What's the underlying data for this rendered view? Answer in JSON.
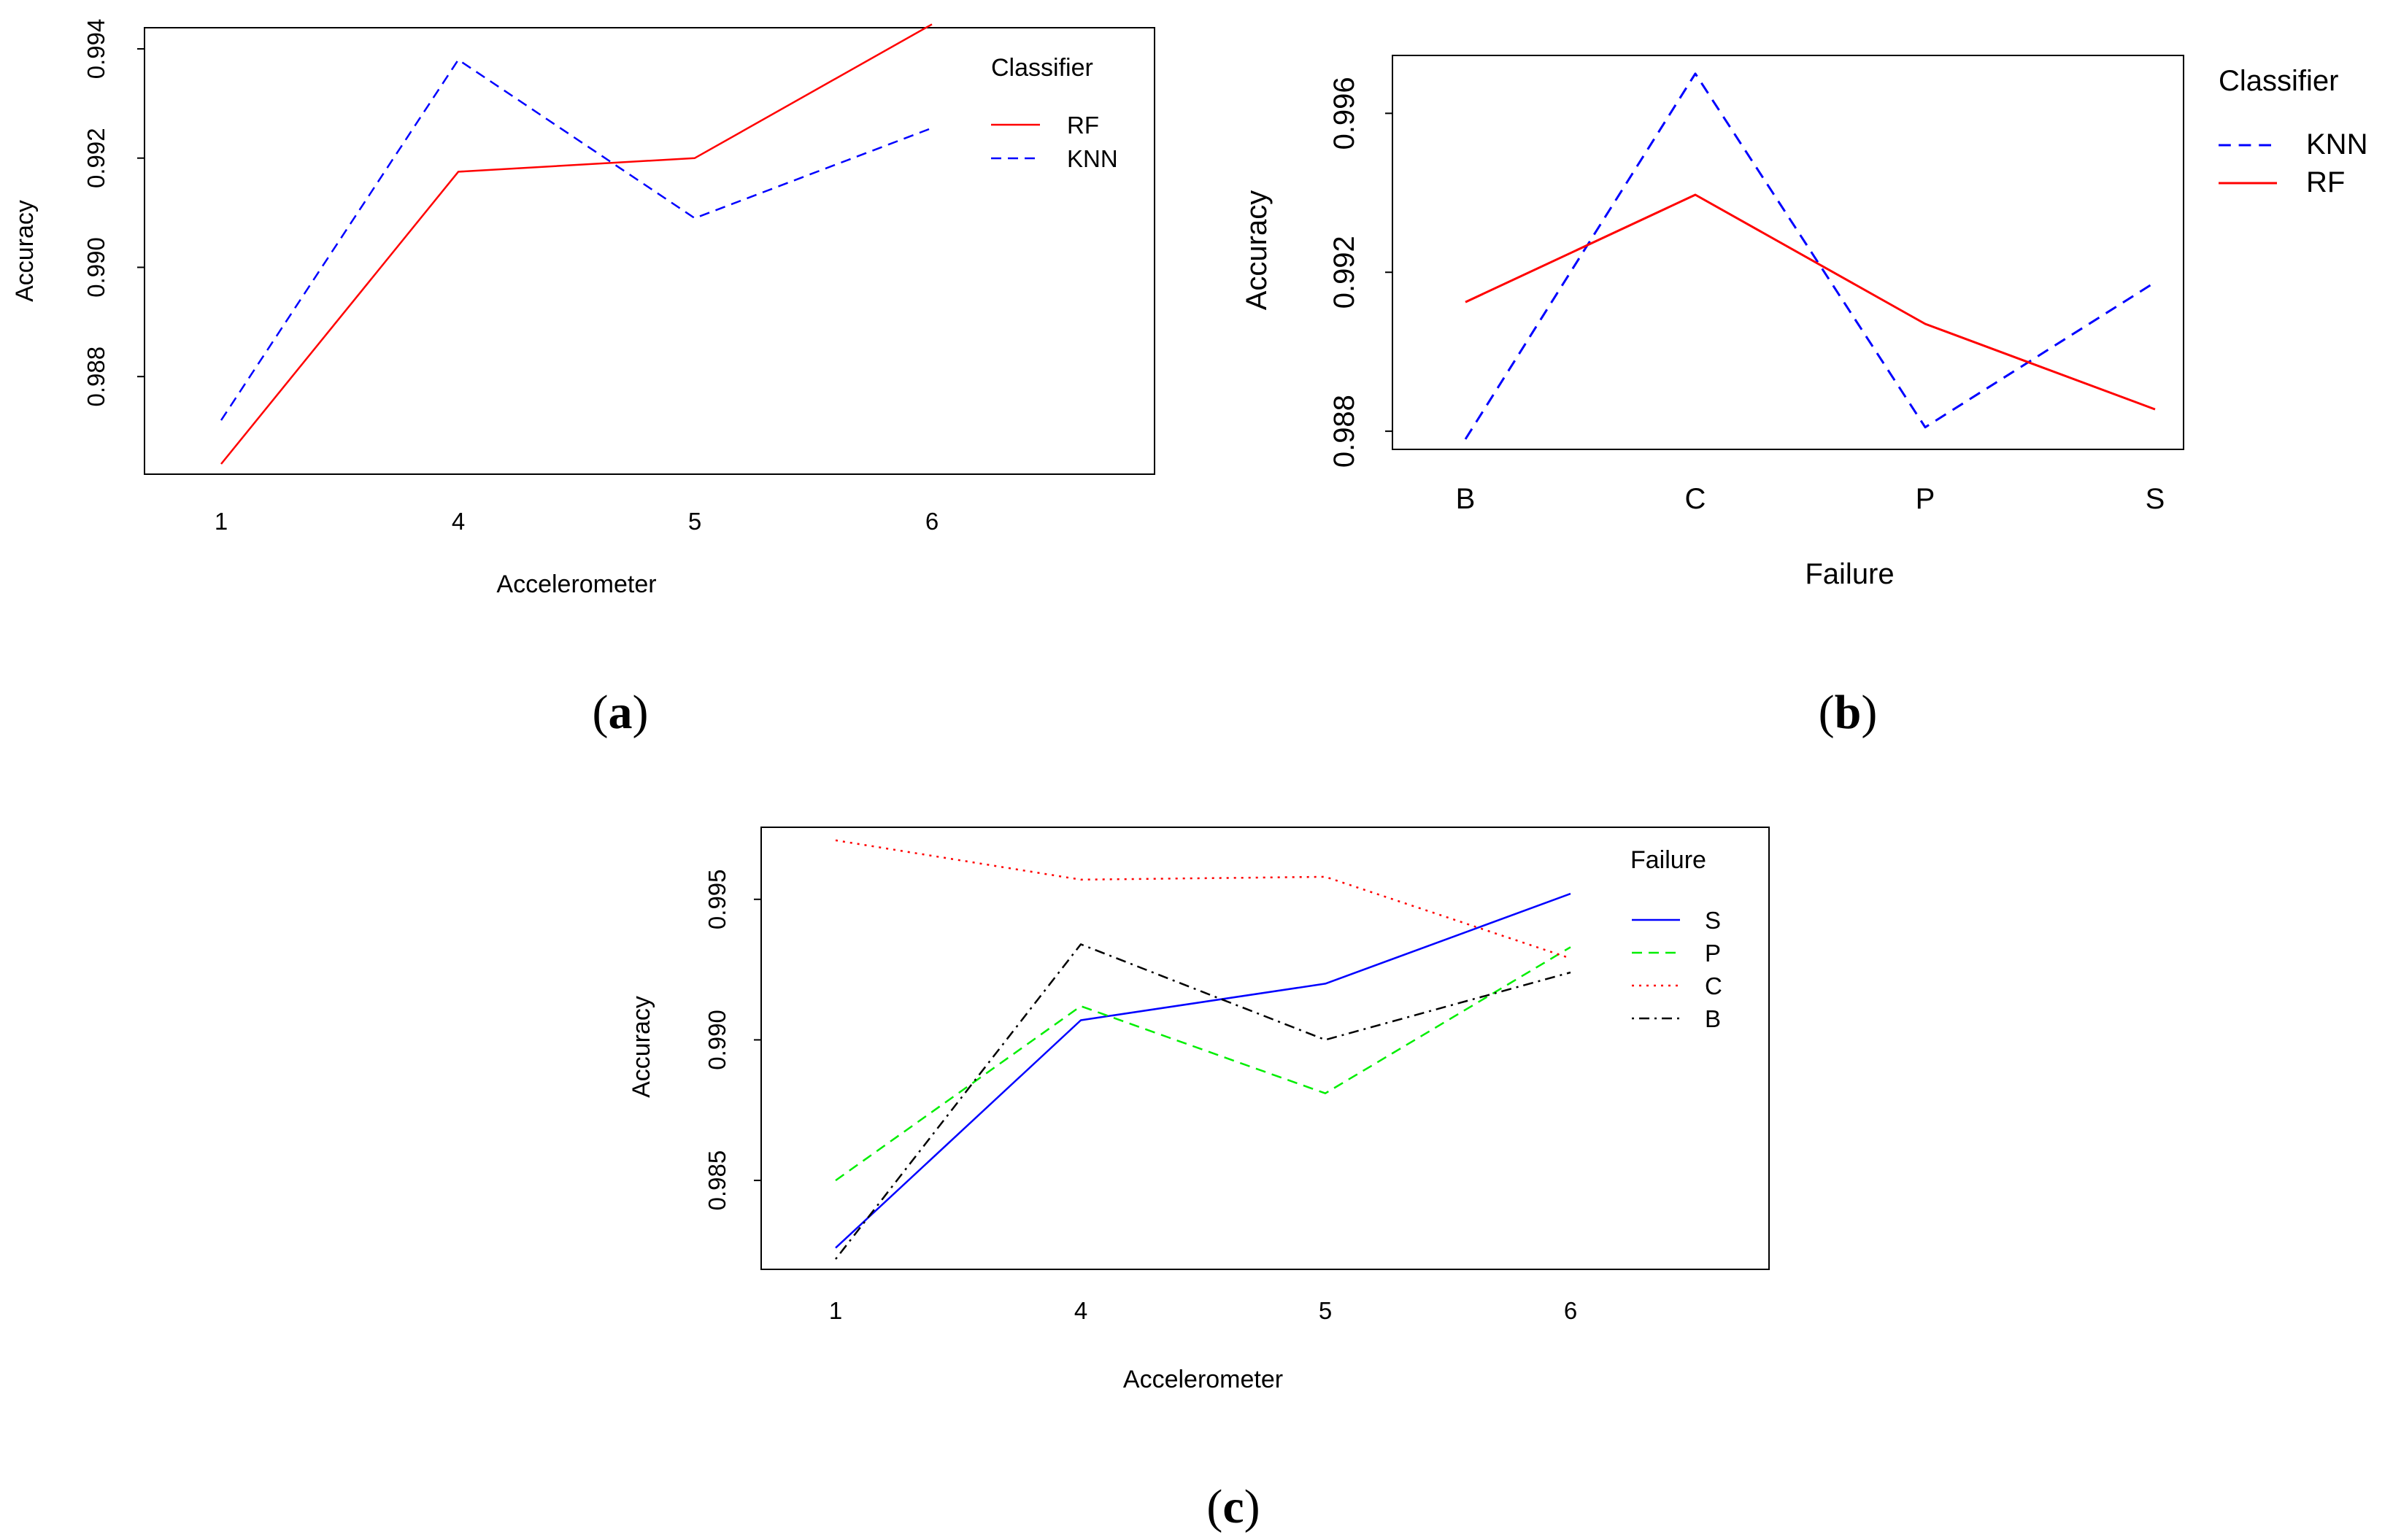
{
  "chart_data": [
    {
      "id": "a",
      "type": "line",
      "caption_open": "(",
      "caption_letter": "a",
      "caption_close": ")",
      "xlabel": "Accelerometer",
      "ylabel": "Accuracy",
      "categories": [
        "1",
        "4",
        "5",
        "6"
      ],
      "ylim": [
        0.9864,
        0.9942
      ],
      "yticks": [
        0.988,
        0.99,
        0.992,
        0.994
      ],
      "ytick_labels": [
        "0.988",
        "0.990",
        "0.992",
        "0.994"
      ],
      "legend_title": "Classifier",
      "legend_position": "top-right",
      "series": [
        {
          "name": "RF",
          "color": "#ff0000",
          "dash": "solid",
          "values": [
            0.9864,
            0.99175,
            0.992,
            0.99445
          ]
        },
        {
          "name": "KNN",
          "color": "#0000ff",
          "dash": "dashed",
          "values": [
            0.9872,
            0.9938,
            0.9909,
            0.99255
          ]
        }
      ]
    },
    {
      "id": "b",
      "type": "line",
      "caption_open": "(",
      "caption_letter": "b",
      "caption_close": ")",
      "xlabel": "Failure",
      "ylabel": "Accuracy",
      "categories": [
        "B",
        "C",
        "P",
        "S"
      ],
      "ylim": [
        0.9878,
        0.9972
      ],
      "yticks": [
        0.988,
        0.992,
        0.996
      ],
      "ytick_labels": [
        "0.988",
        "0.992",
        "0.996"
      ],
      "legend_title": "Classifier",
      "legend_position": "top-right",
      "series": [
        {
          "name": "KNN",
          "color": "#0000ff",
          "dash": "dashed",
          "values": [
            0.9878,
            0.997,
            0.9881,
            0.99175
          ]
        },
        {
          "name": "RF",
          "color": "#ff0000",
          "dash": "solid",
          "values": [
            0.99125,
            0.99395,
            0.9907,
            0.98855
          ]
        }
      ]
    },
    {
      "id": "c",
      "type": "line",
      "caption_open": "(",
      "caption_letter": "c",
      "caption_close": ")",
      "xlabel": "Accelerometer",
      "ylabel": "Accuracy",
      "categories": [
        "1",
        "4",
        "5",
        "6"
      ],
      "ylim": [
        0.9822,
        0.9972
      ],
      "yticks": [
        0.985,
        0.99,
        0.995
      ],
      "ytick_labels": [
        "0.985",
        "0.990",
        "0.995"
      ],
      "legend_title": "Failure",
      "legend_position": "top-right",
      "series": [
        {
          "name": "S",
          "color": "#0000ff",
          "dash": "solid",
          "values": [
            0.9826,
            0.9907,
            0.992,
            0.9952
          ]
        },
        {
          "name": "P",
          "color": "#00ee00",
          "dash": "dashed",
          "values": [
            0.985,
            0.9912,
            0.9881,
            0.9933
          ]
        },
        {
          "name": "C",
          "color": "#ff0000",
          "dash": "dotted",
          "values": [
            0.9971,
            0.9957,
            0.9958,
            0.9929
          ]
        },
        {
          "name": "B",
          "color": "#000000",
          "dash": "dotdash",
          "values": [
            0.9822,
            0.9934,
            0.99,
            0.9924
          ]
        }
      ]
    }
  ]
}
